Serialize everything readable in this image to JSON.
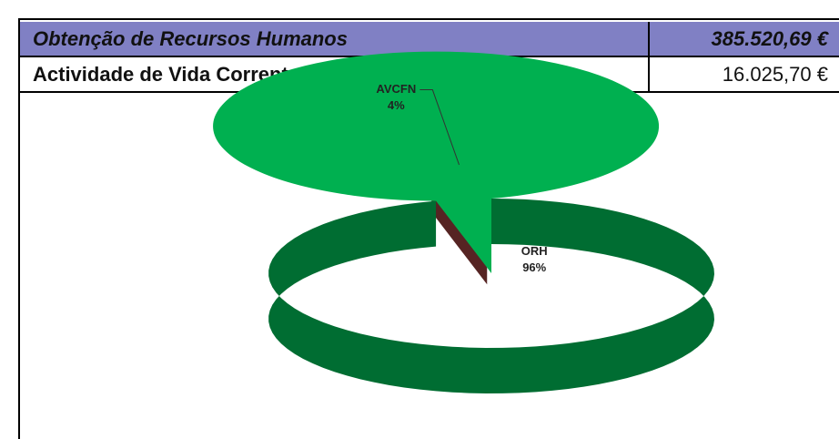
{
  "table": {
    "rows": [
      [
        "Obtenção de Recursos Humanos",
        "385.520,69 €"
      ],
      [
        "Actividade de Vida Corrente e Funcionamento Normal",
        "16.025,70 €"
      ]
    ]
  },
  "chart_data": {
    "type": "pie",
    "categories": [
      "AVCFN",
      "ORH"
    ],
    "values": [
      4,
      96
    ],
    "value_labels": [
      "4%",
      "96%"
    ],
    "colors": [
      "#c0504d",
      "#00b050"
    ],
    "explode": [
      true,
      false
    ]
  }
}
